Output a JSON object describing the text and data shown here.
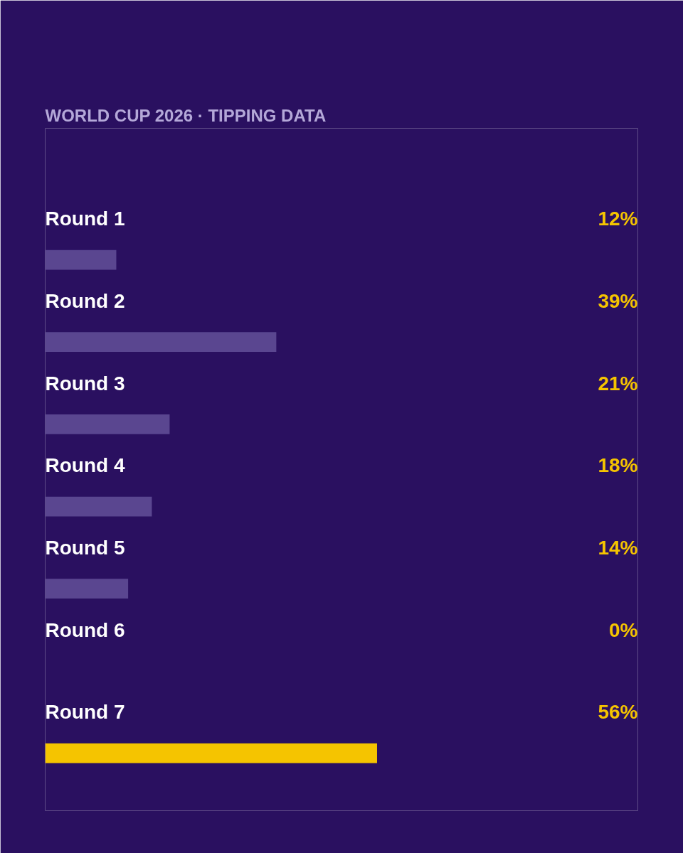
{
  "chart_data": {
    "type": "bar",
    "orientation": "horizontal",
    "title": "WORLD CUP 2026 · TIPPING DATA",
    "categories": [
      "Round 1",
      "Round 2",
      "Round 3",
      "Round 4",
      "Round 5",
      "Round 6",
      "Round 7"
    ],
    "values": [
      12,
      39,
      21,
      18,
      14,
      0,
      56
    ],
    "value_labels": [
      "12%",
      "39%",
      "21%",
      "18%",
      "14%",
      "0%",
      "56%"
    ],
    "colors": [
      "#5a4690",
      "#5a4690",
      "#5a4690",
      "#5a4690",
      "#5a4690",
      "#5a4690",
      "#f5c400"
    ],
    "xlim": [
      0,
      100
    ],
    "tick_labels": false,
    "grid": false
  }
}
